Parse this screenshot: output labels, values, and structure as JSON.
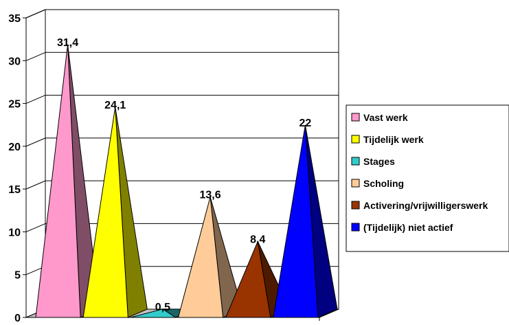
{
  "chart_data": {
    "type": "bar",
    "style": "3d-pyramid",
    "categories": [
      "Vast werk",
      "Tijdelijk werk",
      "Stages",
      "Scholing",
      "Activering/vrijwilligerswerk",
      "(Tijdelijk) niet actief"
    ],
    "values": [
      31.4,
      24.1,
      0.5,
      13.6,
      8.4,
      22
    ],
    "value_labels": [
      "31,4",
      "24,1",
      "0,5",
      "13,6",
      "8,4",
      "22"
    ],
    "colors": [
      "#ff99cc",
      "#ffff00",
      "#33cccc",
      "#ffcc99",
      "#993300",
      "#0000ff"
    ],
    "ylim": [
      0,
      35
    ],
    "yticks": [
      0,
      5,
      10,
      15,
      20,
      25,
      30,
      35
    ],
    "ytick_labels": [
      "0",
      "5",
      "10",
      "15",
      "20",
      "25",
      "30",
      "35"
    ],
    "grid": true,
    "legend": {
      "position": "right",
      "entries": [
        "Vast werk",
        "Tijdelijk werk",
        "Stages",
        "Scholing",
        "Activering/vrijwilligerswerk",
        "(Tijdelijk) niet actief"
      ]
    },
    "title": "",
    "xlabel": "",
    "ylabel": ""
  }
}
